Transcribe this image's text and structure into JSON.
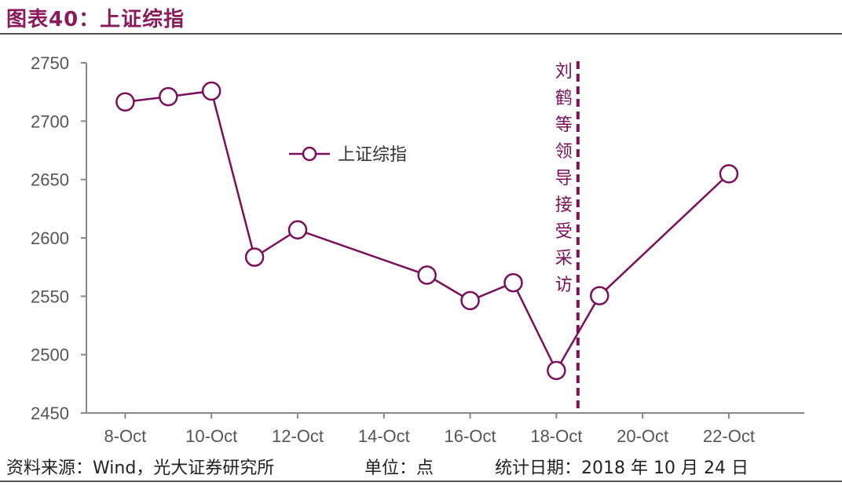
{
  "title": "图表40：上证综指",
  "footer": {
    "source": "资料来源：Wind，光大证券研究所",
    "unit": "单位：点",
    "date": "统计日期：2018 年 10 月 24 日"
  },
  "colors": {
    "series": "#7b0f5c",
    "accent_title": "#8b1a5c",
    "axis": "#888888",
    "text": "#555555"
  },
  "chart_data": {
    "type": "line",
    "x_tick_labels": [
      "8-Oct",
      "10-Oct",
      "12-Oct",
      "14-Oct",
      "16-Oct",
      "18-Oct",
      "20-Oct",
      "22-Oct"
    ],
    "x": [
      "2018-10-08",
      "2018-10-09",
      "2018-10-10",
      "2018-10-11",
      "2018-10-12",
      "2018-10-15",
      "2018-10-16",
      "2018-10-17",
      "2018-10-18",
      "2018-10-19",
      "2018-10-22"
    ],
    "series": [
      {
        "name": "上证综指",
        "values": [
          2716.5,
          2721.0,
          2725.8,
          2583.5,
          2606.9,
          2568.1,
          2546.3,
          2561.6,
          2486.4,
          2550.5,
          2654.9
        ]
      }
    ],
    "ylim": [
      2450,
      2750
    ],
    "y_ticks": [
      2450,
      2500,
      2550,
      2600,
      2650,
      2700,
      2750
    ],
    "legend": {
      "position": "upper-center"
    },
    "annotation": {
      "text": "刘鹤等领导接受采访",
      "x": "2018-10-19",
      "style": "dashed-vertical-line"
    },
    "grid": false
  }
}
